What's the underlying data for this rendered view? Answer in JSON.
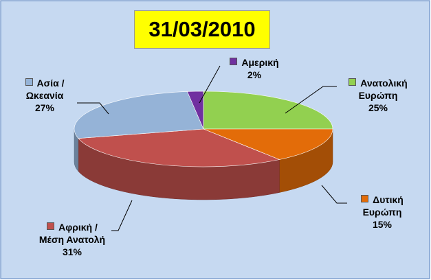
{
  "chart_data": {
    "type": "pie",
    "title": "31/03/2010",
    "categories": [
      "Ανατολική Ευρώπη",
      "Δυτική Ευρώπη",
      "Αφρική / Μέση Ανατολή",
      "Ασία / Ωκεανία",
      "Αμερική"
    ],
    "values": [
      25,
      15,
      31,
      27,
      2
    ],
    "value_labels": [
      "25%",
      "15%",
      "31%",
      "27%",
      "2%"
    ],
    "colors": [
      "#92d050",
      "#e36c09",
      "#c0504d",
      "#95b3d7",
      "#7030a0"
    ]
  }
}
